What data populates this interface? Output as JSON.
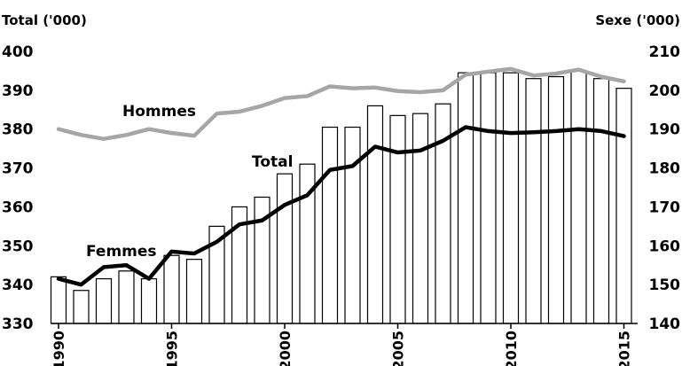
{
  "chart_data": {
    "type": "bar+line",
    "title": "",
    "left_axis": {
      "title": "Total ('000)",
      "ylim": [
        330,
        400
      ],
      "ticks": [
        330,
        340,
        350,
        360,
        370,
        380,
        390,
        400
      ]
    },
    "right_axis": {
      "title": "Sexe ('000)",
      "ylim": [
        140,
        210
      ],
      "ticks": [
        140,
        150,
        160,
        170,
        180,
        190,
        200,
        210
      ]
    },
    "x_ticks": [
      1990,
      1995,
      2000,
      2005,
      2010,
      2015
    ],
    "x": [
      1990,
      1991,
      1992,
      1993,
      1994,
      1995,
      1996,
      1997,
      1998,
      1999,
      2000,
      2001,
      2002,
      2003,
      2004,
      2005,
      2006,
      2007,
      2008,
      2009,
      2010,
      2011,
      2012,
      2013,
      2014,
      2015
    ],
    "bars": {
      "axis": "left",
      "values": [
        342,
        338.5,
        341.5,
        343.5,
        341.5,
        347.5,
        346.5,
        355,
        360,
        362.5,
        368.5,
        371,
        380.5,
        380.5,
        386,
        383.5,
        384,
        386.5,
        394.5,
        394.5,
        394.5,
        393,
        393.5,
        395,
        393,
        390.5
      ],
      "fill": "#ffffff",
      "stroke": "#000000"
    },
    "series": [
      {
        "name": "Total",
        "axis": "right",
        "color": "#000000",
        "values": [
          151.5,
          150,
          154.5,
          155,
          151.5,
          158.5,
          158,
          161,
          165.5,
          166.5,
          170.5,
          173,
          179.5,
          180.5,
          185.5,
          184,
          184.5,
          187,
          190.5,
          189.5,
          189,
          189.2,
          189.5,
          190,
          189.5,
          188.2
        ]
      },
      {
        "name": "Hommes",
        "axis": "right",
        "color": "#a6a6a6",
        "values": [
          190,
          188.5,
          187.5,
          188.5,
          190,
          189,
          188.3,
          194,
          194.5,
          196,
          198,
          198.5,
          201,
          200.5,
          200.7,
          199.8,
          199.5,
          200,
          204,
          204.8,
          205.5,
          203.8,
          204.3,
          205.3,
          203.5,
          202.3
        ]
      },
      {
        "name": "Femmes",
        "axis": "right",
        "color": "#000000",
        "label_only": true
      }
    ]
  }
}
